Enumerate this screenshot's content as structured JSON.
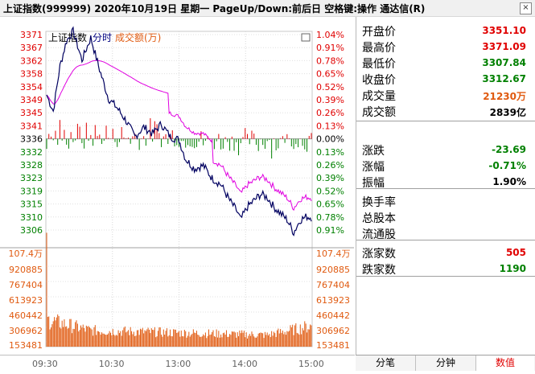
{
  "title": "上证指数(999999)  2020年10月19日  星期一  PageUp/Down:前后日  空格键:操作  通达信(R)",
  "legend": {
    "name": "上证指数",
    "mode": "分时",
    "indicator": "成交额(万)"
  },
  "icons": {
    "close": "close-box-icon",
    "chart_toggle": "window-toggle-icon"
  },
  "colors": {
    "up": "#e00000",
    "down": "#008000",
    "price_line": "#000060",
    "avg_line": "#e000e0",
    "volume": "#e05a10"
  },
  "price_axis": {
    "labels": [
      "3371",
      "3367",
      "3362",
      "3358",
      "3354",
      "3349",
      "3345",
      "3341",
      "3336",
      "3332",
      "3328",
      "3323",
      "3319",
      "3315",
      "3310",
      "3306"
    ],
    "pct": [
      "1.04%",
      "0.91%",
      "0.78%",
      "0.65%",
      "0.52%",
      "0.39%",
      "0.26%",
      "0.13%",
      "0.00%",
      "0.13%",
      "0.26%",
      "0.39%",
      "0.52%",
      "0.65%",
      "0.78%",
      "0.91%"
    ],
    "max": 3371,
    "min": 3306,
    "base": 3336
  },
  "volume_axis": {
    "labels": [
      "107.4万",
      "920885",
      "767404",
      "613923",
      "460442",
      "306962",
      "153481"
    ],
    "max": 1074000
  },
  "time_labels": [
    "09:30",
    "10:30",
    "13:00",
    "14:00",
    "15:00"
  ],
  "chart_data": {
    "type": "line",
    "x": [
      "09:30",
      "10:00",
      "10:30",
      "11:30/13:00",
      "13:30",
      "14:00",
      "14:30",
      "15:00"
    ],
    "series": [
      {
        "name": "price",
        "values": [
          3351.1,
          3369.5,
          3348.7,
          3338.6,
          3328.0,
          3321.6,
          3316.0,
          3312.7
        ]
      },
      {
        "name": "average",
        "values": [
          3351.1,
          3361.4,
          3349.6,
          3339.2,
          3330.1,
          3323.8,
          3318.5,
          3317.1
        ]
      }
    ],
    "ylim": [
      3306,
      3371
    ],
    "volume": {
      "open": 1000000,
      "early": 300000,
      "mid": 180000,
      "late": 130000,
      "close": 230000
    }
  },
  "panel": {
    "rows": [
      {
        "label": "开盘价",
        "value": "3351.10",
        "color": "#e00000"
      },
      {
        "label": "最高价",
        "value": "3371.09",
        "color": "#e00000"
      },
      {
        "label": "最低价",
        "value": "3307.84",
        "color": "#008000"
      },
      {
        "label": "收盘价",
        "value": "3312.67",
        "color": "#008000"
      },
      {
        "label": "成交量",
        "value": "21230万",
        "color": "#e05a10"
      },
      {
        "label": "成交额",
        "value": "2839亿",
        "color": "#000000"
      },
      {
        "label": "涨跌",
        "value": "-23.69",
        "color": "#008000"
      },
      {
        "label": "涨幅",
        "value": "-0.71%",
        "color": "#008000"
      },
      {
        "label": "振幅",
        "value": "1.90%",
        "color": "#000000"
      },
      {
        "label": "换手率",
        "value": "",
        "color": "#000000"
      },
      {
        "label": "总股本",
        "value": "",
        "color": "#000000"
      },
      {
        "label": "流通股",
        "value": "",
        "color": "#000000"
      },
      {
        "label": "涨家数",
        "value": "505",
        "color": "#e00000"
      },
      {
        "label": "跌家数",
        "value": "1190",
        "color": "#008000"
      }
    ]
  },
  "tabs": [
    "分笔",
    "分钟",
    "数值"
  ]
}
